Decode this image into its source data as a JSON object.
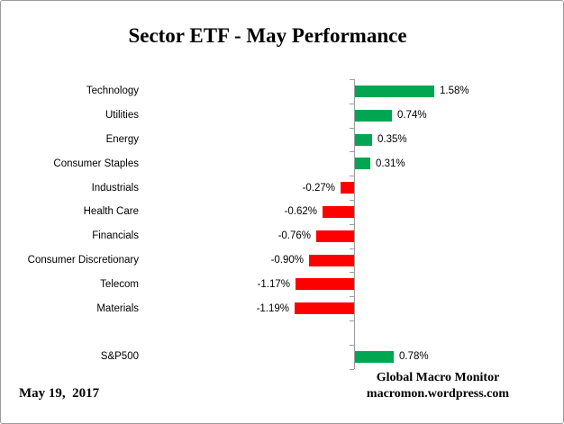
{
  "title": "Sector ETF - May Performance",
  "footer": {
    "date": "May 19,  2017",
    "source_line1": "Global Macro Monitor",
    "source_line2": "macromon.wordpress.com"
  },
  "colors": {
    "positive_bar": "#00A651",
    "negative_bar": "#FF0000",
    "axis": "#9C9C9C",
    "text": "#000000"
  },
  "chart_data": {
    "type": "bar",
    "orientation": "horizontal",
    "title": "Sector ETF - May Performance",
    "xlabel": "",
    "ylabel": "",
    "grid": false,
    "legend": false,
    "data_labels": true,
    "xlim": [
      -1.5,
      2.0
    ],
    "categories": [
      "Technology",
      "Utilities",
      "Energy",
      "Consumer Staples",
      "Industrials",
      "Health Care",
      "Financials",
      "Consumer Discretionary",
      "Telecom",
      "Materials",
      "S&P500"
    ],
    "values": [
      1.58,
      0.74,
      0.35,
      0.31,
      -0.27,
      -0.62,
      -0.76,
      -0.9,
      -1.17,
      -1.19,
      0.78
    ],
    "value_labels": [
      "1.58%",
      "0.74%",
      "0.35%",
      "0.31%",
      "-0.27%",
      "-0.62%",
      "-0.76%",
      "-0.90%",
      "-1.17%",
      "-1.19%",
      "0.78%"
    ],
    "gap_before_index": 10
  }
}
